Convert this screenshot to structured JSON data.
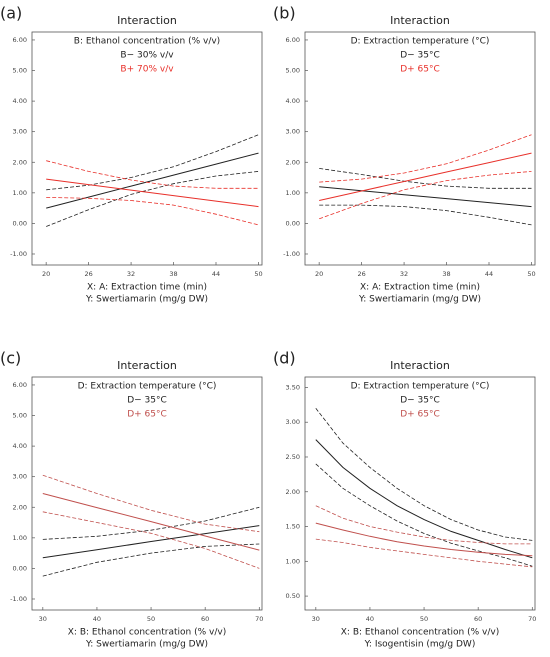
{
  "chart_data": [
    {
      "type": "line",
      "panel_label": "(a)",
      "title": "Interaction",
      "legend_title": "B: Ethanol concentration (% v/v)",
      "xlabel": "X: A: Extraction time (min)",
      "ylabel": "Y: Swertiamarin (mg/g DW)",
      "x": [
        20,
        26,
        32,
        38,
        44,
        50
      ],
      "xlim": [
        18,
        50.5
      ],
      "xticks": [
        20,
        26,
        32,
        38,
        44,
        50
      ],
      "ylim": [
        -1.36,
        6.26
      ],
      "yticks": [
        {
          "value": -1,
          "label": "-1.00"
        },
        {
          "value": 0,
          "label": "0.00"
        },
        {
          "value": 1,
          "label": "1.00"
        },
        {
          "value": 2,
          "label": "2.00"
        },
        {
          "value": 3,
          "label": "3.00"
        },
        {
          "value": 4,
          "label": "4.00"
        },
        {
          "value": 5,
          "label": "5.00"
        },
        {
          "value": 6,
          "label": "6.00"
        }
      ],
      "series": [
        {
          "name": "B− 30% v/v",
          "color": "#222222",
          "values": [
            0.5,
            0.86,
            1.22,
            1.58,
            1.94,
            2.3
          ],
          "upper": [
            1.1,
            1.25,
            1.5,
            1.85,
            2.35,
            2.9
          ],
          "lower": [
            -0.1,
            0.45,
            0.95,
            1.3,
            1.55,
            1.7
          ]
        },
        {
          "name": "B+ 70% v/v",
          "color": "#e8302a",
          "values": [
            1.45,
            1.27,
            1.09,
            0.91,
            0.73,
            0.55
          ],
          "upper": [
            2.05,
            1.7,
            1.42,
            1.22,
            1.15,
            1.15
          ],
          "lower": [
            0.85,
            0.82,
            0.75,
            0.6,
            0.3,
            -0.05
          ]
        }
      ]
    },
    {
      "type": "line",
      "panel_label": "(b)",
      "title": "Interaction",
      "legend_title": "D: Extraction temperature  (°C)",
      "xlabel": "X: A: Extraction time (min)",
      "ylabel": "Y: Swertiamarin (mg/g DW)",
      "x": [
        20,
        26,
        32,
        38,
        44,
        50
      ],
      "xlim": [
        18,
        50.5
      ],
      "xticks": [
        20,
        26,
        32,
        38,
        44,
        50
      ],
      "ylim": [
        -1.36,
        6.26
      ],
      "yticks": [
        {
          "value": -1,
          "label": "-1.00"
        },
        {
          "value": 0,
          "label": "0.00"
        },
        {
          "value": 1,
          "label": "1.00"
        },
        {
          "value": 2,
          "label": "2.00"
        },
        {
          "value": 3,
          "label": "3.00"
        },
        {
          "value": 4,
          "label": "4.00"
        },
        {
          "value": 5,
          "label": "5.00"
        },
        {
          "value": 6,
          "label": "6.00"
        }
      ],
      "series": [
        {
          "name": "D− 35°C",
          "color": "#222222",
          "values": [
            1.2,
            1.07,
            0.94,
            0.81,
            0.68,
            0.55
          ],
          "upper": [
            1.8,
            1.6,
            1.38,
            1.22,
            1.15,
            1.15
          ],
          "lower": [
            0.6,
            0.6,
            0.55,
            0.42,
            0.2,
            -0.05
          ]
        },
        {
          "name": "D+ 65°C",
          "color": "#e8302a",
          "values": [
            0.75,
            1.06,
            1.37,
            1.68,
            1.99,
            2.3
          ],
          "upper": [
            1.35,
            1.45,
            1.65,
            1.95,
            2.4,
            2.9
          ],
          "lower": [
            0.15,
            0.65,
            1.1,
            1.4,
            1.58,
            1.7
          ]
        }
      ]
    },
    {
      "type": "line",
      "panel_label": "(c)",
      "title": "Interaction",
      "legend_title": "D: Extraction temperature  (°C)",
      "xlabel": "X: B: Ethanol concentration (% v/v)",
      "ylabel": "Y: Swertiamarin (mg/g DW)",
      "x": [
        30,
        40,
        50,
        60,
        70
      ],
      "xlim": [
        28,
        70.5
      ],
      "xticks": [
        30,
        40,
        50,
        60,
        70
      ],
      "ylim": [
        -1.36,
        6.26
      ],
      "yticks": [
        {
          "value": -1,
          "label": "-1.00"
        },
        {
          "value": 0,
          "label": "0.00"
        },
        {
          "value": 1,
          "label": "1.00"
        },
        {
          "value": 2,
          "label": "2.00"
        },
        {
          "value": 3,
          "label": "3.00"
        },
        {
          "value": 4,
          "label": "4.00"
        },
        {
          "value": 5,
          "label": "5.00"
        },
        {
          "value": 6,
          "label": "6.00"
        }
      ],
      "series": [
        {
          "name": "D− 35°C",
          "color": "#222222",
          "values": [
            0.35,
            0.61,
            0.88,
            1.14,
            1.4
          ],
          "upper": [
            0.95,
            1.05,
            1.25,
            1.55,
            2.0
          ],
          "lower": [
            -0.25,
            0.2,
            0.5,
            0.72,
            0.8
          ]
        },
        {
          "name": "D+ 65°C",
          "color": "#c0504d",
          "values": [
            2.45,
            1.99,
            1.53,
            1.06,
            0.6
          ],
          "upper": [
            3.05,
            2.45,
            1.9,
            1.45,
            1.2
          ],
          "lower": [
            1.85,
            1.5,
            1.15,
            0.65,
            0.0
          ]
        }
      ]
    },
    {
      "type": "line",
      "panel_label": "(d)",
      "title": "Interaction",
      "legend_title": "D: Extraction temperature  (°C)",
      "xlabel": "X: B: Ethanol concentration (% v/v)",
      "ylabel": "Y: Isogentisin  (mg/g DW)",
      "x": [
        30,
        35,
        40,
        45,
        50,
        55,
        60,
        65,
        70
      ],
      "xlim": [
        28,
        70.5
      ],
      "xticks": [
        30,
        40,
        50,
        60,
        70
      ],
      "ylim": [
        0.3,
        3.65
      ],
      "yticks": [
        {
          "value": 0.5,
          "label": "0.50"
        },
        {
          "value": 1,
          "label": "1.00"
        },
        {
          "value": 1.5,
          "label": "1.50"
        },
        {
          "value": 2,
          "label": "2.00"
        },
        {
          "value": 2.5,
          "label": "2.50"
        },
        {
          "value": 3,
          "label": "3.00"
        },
        {
          "value": 3.5,
          "label": "3.50"
        }
      ],
      "series": [
        {
          "name": "D− 35°C",
          "color": "#222222",
          "values": [
            2.75,
            2.35,
            2.05,
            1.8,
            1.6,
            1.43,
            1.3,
            1.17,
            1.05
          ],
          "upper": [
            3.2,
            2.7,
            2.35,
            2.05,
            1.8,
            1.6,
            1.45,
            1.35,
            1.3
          ],
          "lower": [
            2.4,
            2.05,
            1.8,
            1.58,
            1.4,
            1.26,
            1.15,
            1.05,
            0.93
          ]
        },
        {
          "name": "D+ 65°C",
          "color": "#c0504d",
          "values": [
            1.55,
            1.45,
            1.36,
            1.28,
            1.22,
            1.17,
            1.13,
            1.1,
            1.08
          ],
          "upper": [
            1.8,
            1.62,
            1.5,
            1.42,
            1.35,
            1.3,
            1.27,
            1.25,
            1.25
          ],
          "lower": [
            1.32,
            1.27,
            1.2,
            1.15,
            1.1,
            1.05,
            1.0,
            0.96,
            0.92
          ]
        }
      ]
    }
  ]
}
